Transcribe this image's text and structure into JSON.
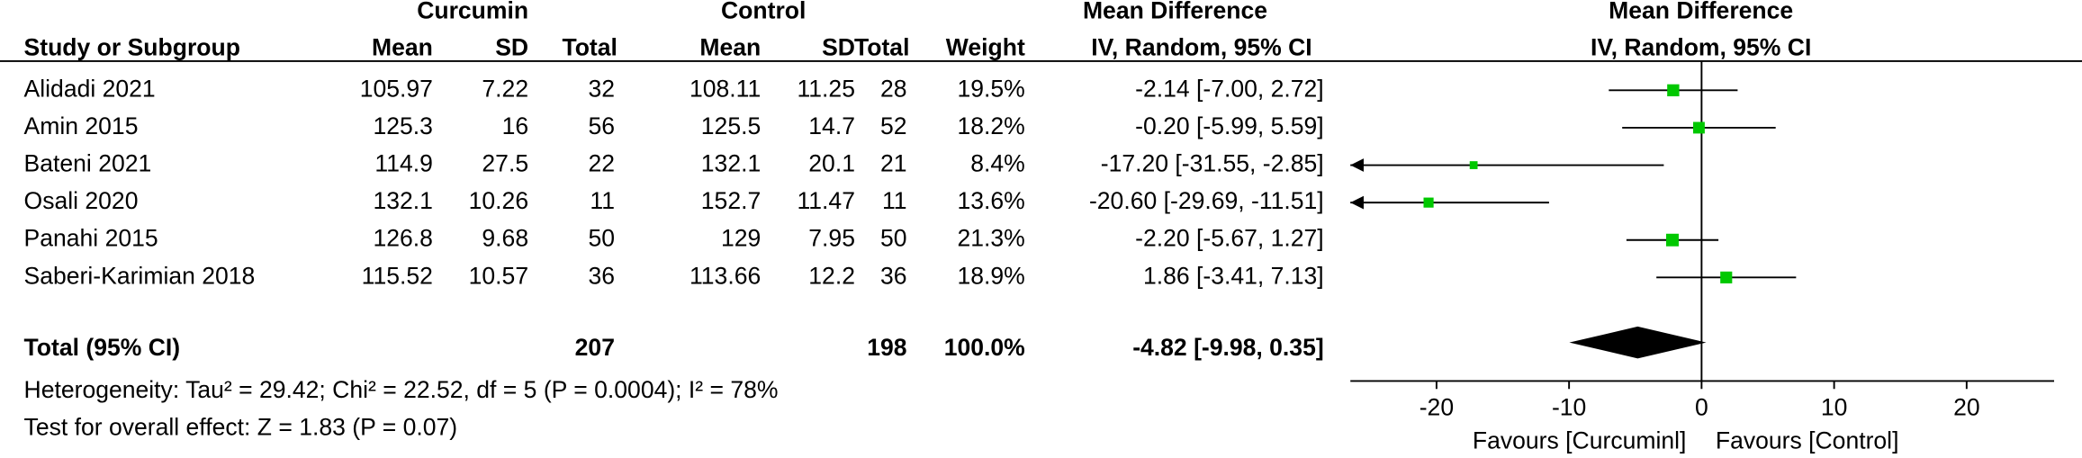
{
  "chart_data": {
    "type": "forest",
    "group_headers": {
      "experimental": "Curcumin",
      "control": "Control",
      "effect": "Mean Difference",
      "plot": "Mean Difference"
    },
    "column_headers": {
      "study": "Study or Subgroup",
      "exp_mean": "Mean",
      "exp_sd": "SD",
      "exp_total": "Total",
      "ctl_mean": "Mean",
      "ctl_sd": "SD",
      "ctl_total": "Total",
      "weight": "Weight",
      "effect": "IV, Random, 95% CI",
      "plot": "IV, Random, 95% CI"
    },
    "studies": [
      {
        "name": "Alidadi  2021",
        "exp_mean": 105.97,
        "exp_sd": 7.22,
        "exp_total": 32,
        "ctl_mean": 108.11,
        "ctl_sd": 11.25,
        "ctl_total": 28,
        "weight": {
          "value": 19.5,
          "label": "19.5%"
        },
        "md": -2.14,
        "lower": -7.0,
        "upper": 2.72,
        "ci_label": "-2.14 [-7.00, 2.72]"
      },
      {
        "name": "Amin  2015",
        "exp_mean": 125.3,
        "exp_sd": 16,
        "exp_total": 56,
        "ctl_mean": 125.5,
        "ctl_sd": 14.7,
        "ctl_total": 52,
        "weight": {
          "value": 18.2,
          "label": "18.2%"
        },
        "md": -0.2,
        "lower": -5.99,
        "upper": 5.59,
        "ci_label": "-0.20 [-5.99, 5.59]"
      },
      {
        "name": "Bateni  2021",
        "exp_mean": 114.9,
        "exp_sd": 27.5,
        "exp_total": 22,
        "ctl_mean": 132.1,
        "ctl_sd": 20.1,
        "ctl_total": 21,
        "weight": {
          "value": 8.4,
          "label": "8.4%"
        },
        "md": -17.2,
        "lower": -31.55,
        "upper": -2.85,
        "ci_label": "-17.20 [-31.55, -2.85]"
      },
      {
        "name": "Osali  2020",
        "exp_mean": 132.1,
        "exp_sd": 10.26,
        "exp_total": 11,
        "ctl_mean": 152.7,
        "ctl_sd": 11.47,
        "ctl_total": 11,
        "weight": {
          "value": 13.6,
          "label": "13.6%"
        },
        "md": -20.6,
        "lower": -29.69,
        "upper": -11.51,
        "ci_label": "-20.60 [-29.69, -11.51]"
      },
      {
        "name": "Panahi  2015",
        "exp_mean": 126.8,
        "exp_sd": 9.68,
        "exp_total": 50,
        "ctl_mean": 129,
        "ctl_sd": 7.95,
        "ctl_total": 50,
        "weight": {
          "value": 21.3,
          "label": "21.3%"
        },
        "md": -2.2,
        "lower": -5.67,
        "upper": 1.27,
        "ci_label": "-2.20 [-5.67, 1.27]"
      },
      {
        "name": "Saberi-Karimian  2018",
        "exp_mean": 115.52,
        "exp_sd": 10.57,
        "exp_total": 36,
        "ctl_mean": 113.66,
        "ctl_sd": 12.2,
        "ctl_total": 36,
        "weight": {
          "value": 18.9,
          "label": "18.9%"
        },
        "md": 1.86,
        "lower": -3.41,
        "upper": 7.13,
        "ci_label": "1.86 [-3.41, 7.13]"
      }
    ],
    "total": {
      "name": "Total (95% CI)",
      "exp_total": 207,
      "ctl_total": 198,
      "weight": {
        "value": 100,
        "label": "100.0%"
      },
      "md": -4.82,
      "lower": -9.98,
      "upper": 0.35,
      "ci_label": "-4.82 [-9.98, 0.35]"
    },
    "heterogeneity": "Heterogeneity: Tau² = 29.42; Chi² = 22.52, df = 5 (P = 0.0004); I² = 78%",
    "overall_effect": "Test for overall effect: Z = 1.83 (P = 0.07)",
    "xlim": [
      -26.5,
      26.6
    ],
    "xticks": [
      -20,
      -10,
      0,
      10,
      20
    ],
    "favours_left": "Favours [Curcuminl]",
    "favours_right": "Favours [Control]",
    "marker_color": "#00c800",
    "diamond_color": "#000000"
  }
}
